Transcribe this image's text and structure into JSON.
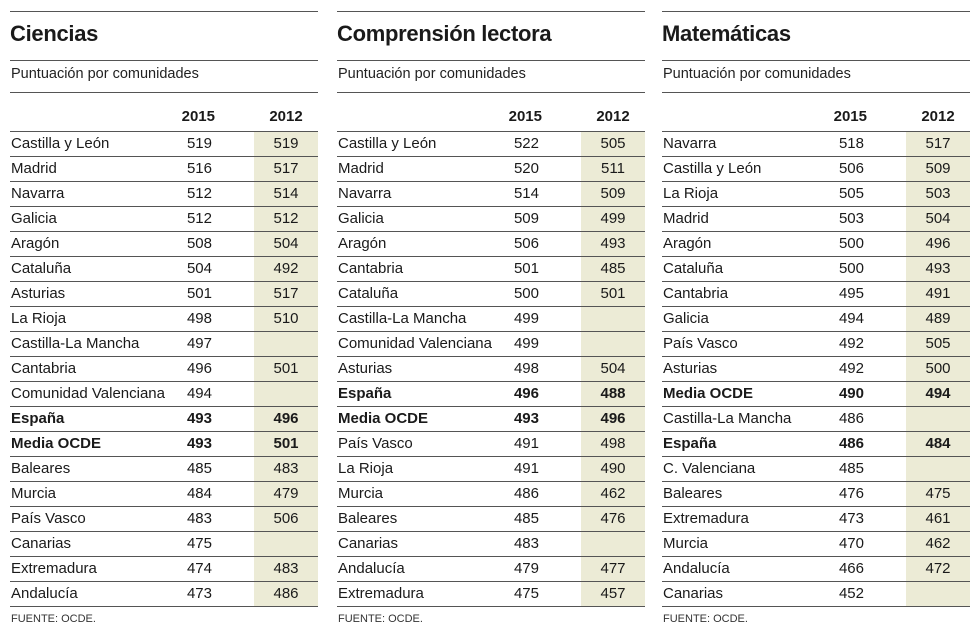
{
  "header_2015": "2015",
  "header_2012": "2012",
  "subtitle": "Puntuación por comunidades",
  "source": "FUENTE: OCDE.",
  "shade_color": "#ecebd6",
  "panels": [
    {
      "title": "Ciencias",
      "rows": [
        {
          "name": "Castilla y León",
          "v2015": "519",
          "v2012": "519"
        },
        {
          "name": "Madrid",
          "v2015": "516",
          "v2012": "517"
        },
        {
          "name": "Navarra",
          "v2015": "512",
          "v2012": "514"
        },
        {
          "name": "Galicia",
          "v2015": "512",
          "v2012": "512"
        },
        {
          "name": "Aragón",
          "v2015": "508",
          "v2012": "504"
        },
        {
          "name": "Cataluña",
          "v2015": "504",
          "v2012": "492"
        },
        {
          "name": "Asturias",
          "v2015": "501",
          "v2012": "517"
        },
        {
          "name": "La Rioja",
          "v2015": "498",
          "v2012": "510"
        },
        {
          "name": "Castilla-La Mancha",
          "v2015": "497",
          "v2012": ""
        },
        {
          "name": "Cantabria",
          "v2015": "496",
          "v2012": "501"
        },
        {
          "name": "Comunidad Valenciana",
          "v2015": "494",
          "v2012": ""
        },
        {
          "name": "España",
          "v2015": "493",
          "v2012": "496",
          "bold": true
        },
        {
          "name": "Media OCDE",
          "v2015": "493",
          "v2012": "501",
          "bold": true
        },
        {
          "name": "Baleares",
          "v2015": "485",
          "v2012": "483"
        },
        {
          "name": "Murcia",
          "v2015": "484",
          "v2012": "479"
        },
        {
          "name": "País Vasco",
          "v2015": "483",
          "v2012": "506"
        },
        {
          "name": "Canarias",
          "v2015": "475",
          "v2012": ""
        },
        {
          "name": "Extremadura",
          "v2015": "474",
          "v2012": "483"
        },
        {
          "name": "Andalucía",
          "v2015": "473",
          "v2012": "486"
        }
      ]
    },
    {
      "title": "Comprensión lectora",
      "rows": [
        {
          "name": "Castilla y León",
          "v2015": "522",
          "v2012": "505"
        },
        {
          "name": "Madrid",
          "v2015": "520",
          "v2012": "511"
        },
        {
          "name": "Navarra",
          "v2015": "514",
          "v2012": "509"
        },
        {
          "name": "Galicia",
          "v2015": "509",
          "v2012": "499"
        },
        {
          "name": "Aragón",
          "v2015": "506",
          "v2012": "493"
        },
        {
          "name": "Cantabria",
          "v2015": "501",
          "v2012": "485"
        },
        {
          "name": "Cataluña",
          "v2015": "500",
          "v2012": "501"
        },
        {
          "name": "Castilla-La Mancha",
          "v2015": "499",
          "v2012": ""
        },
        {
          "name": "Comunidad Valenciana",
          "v2015": "499",
          "v2012": ""
        },
        {
          "name": "Asturias",
          "v2015": "498",
          "v2012": "504"
        },
        {
          "name": "España",
          "v2015": "496",
          "v2012": "488",
          "bold": true
        },
        {
          "name": "Media OCDE",
          "v2015": "493",
          "v2012": "496",
          "bold": true
        },
        {
          "name": "País Vasco",
          "v2015": "491",
          "v2012": "498"
        },
        {
          "name": "La Rioja",
          "v2015": "491",
          "v2012": "490"
        },
        {
          "name": "Murcia",
          "v2015": "486",
          "v2012": "462"
        },
        {
          "name": "Baleares",
          "v2015": "485",
          "v2012": "476"
        },
        {
          "name": "Canarias",
          "v2015": "483",
          "v2012": ""
        },
        {
          "name": "Andalucía",
          "v2015": "479",
          "v2012": "477"
        },
        {
          "name": "Extremadura",
          "v2015": "475",
          "v2012": "457"
        }
      ]
    },
    {
      "title": "Matemáticas",
      "rows": [
        {
          "name": "Navarra",
          "v2015": "518",
          "v2012": "517"
        },
        {
          "name": "Castilla y León",
          "v2015": "506",
          "v2012": "509"
        },
        {
          "name": "La Rioja",
          "v2015": "505",
          "v2012": "503"
        },
        {
          "name": "Madrid",
          "v2015": "503",
          "v2012": "504"
        },
        {
          "name": "Aragón",
          "v2015": "500",
          "v2012": "496"
        },
        {
          "name": "Cataluña",
          "v2015": "500",
          "v2012": "493"
        },
        {
          "name": "Cantabria",
          "v2015": "495",
          "v2012": "491"
        },
        {
          "name": "Galicia",
          "v2015": "494",
          "v2012": "489"
        },
        {
          "name": "País Vasco",
          "v2015": "492",
          "v2012": "505"
        },
        {
          "name": "Asturias",
          "v2015": "492",
          "v2012": "500"
        },
        {
          "name": "Media OCDE",
          "v2015": "490",
          "v2012": "494",
          "bold": true
        },
        {
          "name": "Castilla-La Mancha",
          "v2015": "486",
          "v2012": ""
        },
        {
          "name": "España",
          "v2015": "486",
          "v2012": "484",
          "bold": true
        },
        {
          "name": "C. Valenciana",
          "v2015": "485",
          "v2012": ""
        },
        {
          "name": "Baleares",
          "v2015": "476",
          "v2012": "475"
        },
        {
          "name": "Extremadura",
          "v2015": "473",
          "v2012": "461"
        },
        {
          "name": "Murcia",
          "v2015": "470",
          "v2012": "462"
        },
        {
          "name": "Andalucía",
          "v2015": "466",
          "v2012": "472"
        },
        {
          "name": "Canarias",
          "v2015": "452",
          "v2012": ""
        }
      ]
    }
  ]
}
